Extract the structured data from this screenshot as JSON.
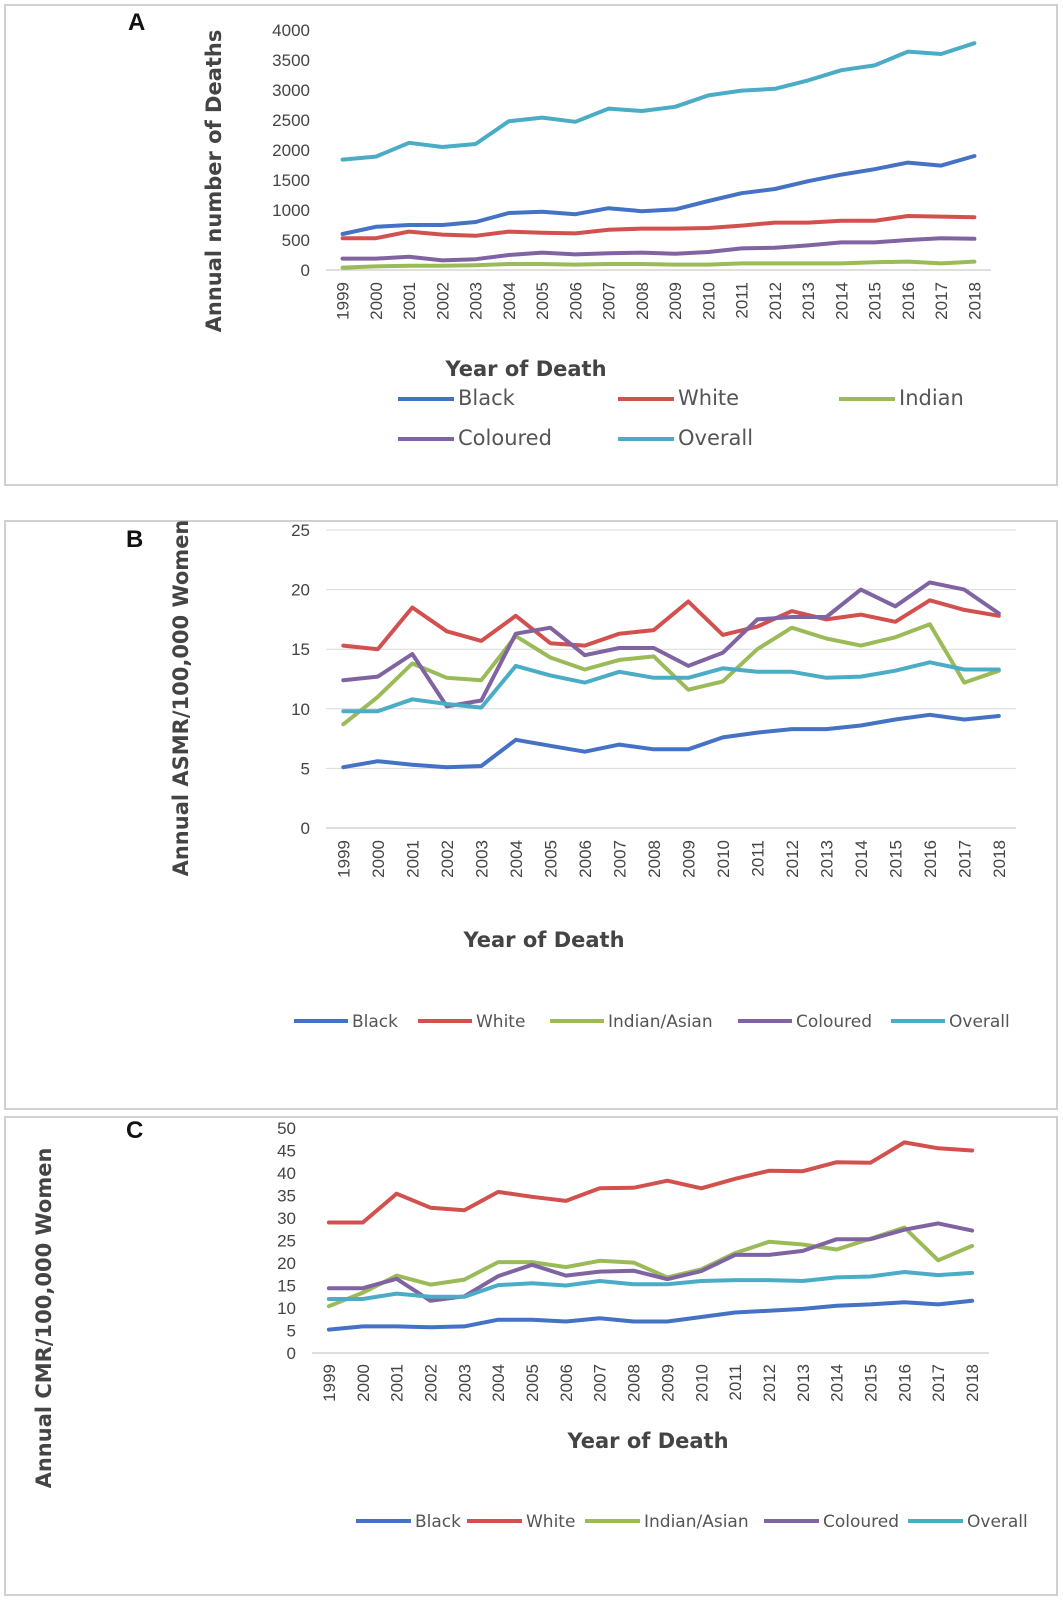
{
  "colors": {
    "Black": "#4472C4",
    "White": "#D2514E",
    "Indian": "#9BBB59",
    "Indian/Asian": "#9BBB59",
    "Coloured": "#8064A2",
    "Overall": "#4BACC6",
    "grid": "#d9d9d9"
  },
  "chart_data": [
    {
      "panel_label": "A",
      "type": "line",
      "title": "",
      "xlabel": "Year of Death",
      "ylabel": "Annual number of Deaths",
      "categories": [
        "1999",
        "2000",
        "2001",
        "2002",
        "2003",
        "2004",
        "2005",
        "2006",
        "2007",
        "2008",
        "2009",
        "2010",
        "2011",
        "2012",
        "2013",
        "2014",
        "2015",
        "2016",
        "2017",
        "2018"
      ],
      "ylim": [
        0,
        4000
      ],
      "yticks": [
        "0",
        "500",
        "1000",
        "1500",
        "2000",
        "2500",
        "3000",
        "3500",
        "4000"
      ],
      "grid": false,
      "series": [
        {
          "name": "Black",
          "values": [
            600,
            720,
            750,
            750,
            800,
            950,
            970,
            930,
            1030,
            980,
            1010,
            1150,
            1280,
            1350,
            1480,
            1590,
            1680,
            1790,
            1740,
            1900
          ]
        },
        {
          "name": "White",
          "values": [
            530,
            530,
            640,
            590,
            570,
            640,
            620,
            610,
            670,
            690,
            690,
            700,
            740,
            790,
            790,
            820,
            820,
            900,
            890,
            880
          ]
        },
        {
          "name": "Indian",
          "values": [
            40,
            60,
            70,
            70,
            80,
            100,
            100,
            90,
            100,
            100,
            90,
            90,
            110,
            110,
            110,
            110,
            130,
            140,
            110,
            140
          ]
        },
        {
          "name": "Coloured",
          "values": [
            190,
            190,
            220,
            160,
            180,
            250,
            290,
            260,
            280,
            290,
            270,
            300,
            360,
            370,
            410,
            460,
            460,
            500,
            530,
            520
          ]
        },
        {
          "name": "Overall",
          "values": [
            1840,
            1890,
            2120,
            2050,
            2100,
            2480,
            2540,
            2470,
            2690,
            2650,
            2720,
            2910,
            2990,
            3020,
            3160,
            3330,
            3410,
            3640,
            3600,
            3780
          ]
        }
      ],
      "legend": [
        "Black",
        "White",
        "Indian",
        "Coloured",
        "Overall"
      ]
    },
    {
      "panel_label": "B",
      "type": "line",
      "title": "",
      "xlabel": "Year of Death",
      "ylabel": "Annual ASMR/100,000 Women",
      "categories": [
        "1999",
        "2000",
        "2001",
        "2002",
        "2003",
        "2004",
        "2005",
        "2006",
        "2007",
        "2008",
        "2009",
        "2010",
        "2011",
        "2012",
        "2013",
        "2014",
        "2015",
        "2016",
        "2017",
        "2018"
      ],
      "ylim": [
        0,
        25
      ],
      "yticks": [
        "0",
        "5",
        "10",
        "15",
        "20",
        "25"
      ],
      "grid": true,
      "series": [
        {
          "name": "Black",
          "values": [
            5.1,
            5.6,
            5.3,
            5.1,
            5.2,
            7.4,
            6.9,
            6.4,
            7.0,
            6.6,
            6.6,
            7.6,
            8.0,
            8.3,
            8.3,
            8.6,
            9.1,
            9.5,
            9.1,
            9.4
          ]
        },
        {
          "name": "White",
          "values": [
            15.3,
            15.0,
            18.5,
            16.5,
            15.7,
            17.8,
            15.5,
            15.3,
            16.3,
            16.6,
            19.0,
            16.2,
            16.9,
            18.2,
            17.5,
            17.9,
            17.3,
            19.1,
            18.3,
            17.8
          ]
        },
        {
          "name": "Indian/Asian",
          "values": [
            8.7,
            11.0,
            13.8,
            12.6,
            12.4,
            16.1,
            14.3,
            13.3,
            14.1,
            14.4,
            11.6,
            12.3,
            15.0,
            16.8,
            15.9,
            15.3,
            16.0,
            17.1,
            12.2,
            13.2
          ]
        },
        {
          "name": "Coloured",
          "values": [
            12.4,
            12.7,
            14.6,
            10.2,
            10.7,
            16.3,
            16.8,
            14.5,
            15.1,
            15.1,
            13.6,
            14.7,
            17.5,
            17.7,
            17.7,
            20.0,
            18.6,
            20.6,
            20.0,
            18.0
          ]
        },
        {
          "name": "Overall",
          "values": [
            9.8,
            9.8,
            10.8,
            10.4,
            10.1,
            13.6,
            12.8,
            12.2,
            13.1,
            12.6,
            12.6,
            13.4,
            13.1,
            13.1,
            12.6,
            12.7,
            13.2,
            13.9,
            13.3,
            13.3
          ]
        }
      ],
      "legend": [
        "Black",
        "White",
        "Indian/Asian",
        "Coloured",
        "Overall"
      ]
    },
    {
      "panel_label": "C",
      "type": "line",
      "title": "",
      "xlabel": "Year of Death",
      "ylabel": "Annual CMR/100,000 Women",
      "categories": [
        "1999",
        "2000",
        "2001",
        "2002",
        "2003",
        "2004",
        "2005",
        "2006",
        "2007",
        "2008",
        "2009",
        "2010",
        "2011",
        "2012",
        "2013",
        "2014",
        "2015",
        "2016",
        "2017",
        "2018"
      ],
      "ylim": [
        0,
        50
      ],
      "yticks": [
        "0",
        "5",
        "10",
        "15",
        "20",
        "25",
        "30",
        "35",
        "40",
        "45",
        "50"
      ],
      "grid": false,
      "series": [
        {
          "name": "Black",
          "values": [
            5.2,
            5.9,
            5.9,
            5.7,
            5.9,
            7.4,
            7.4,
            7.0,
            7.7,
            7.0,
            7.0,
            8.0,
            9.0,
            9.4,
            9.8,
            10.5,
            10.8,
            11.3,
            10.8,
            11.6
          ]
        },
        {
          "name": "White",
          "values": [
            29,
            29,
            35.4,
            32.3,
            31.7,
            35.8,
            34.7,
            33.8,
            36.6,
            36.7,
            38.3,
            36.6,
            38.7,
            40.5,
            40.4,
            42.4,
            42.3,
            46.8,
            45.5,
            45.0
          ]
        },
        {
          "name": "Indian/Asian",
          "values": [
            10.4,
            13.4,
            17.2,
            15.2,
            16.3,
            20.2,
            20.2,
            19.1,
            20.5,
            20.1,
            16.8,
            18.6,
            22.2,
            24.7,
            24.1,
            23.0,
            25.4,
            27.9,
            20.6,
            23.8
          ]
        },
        {
          "name": "Coloured",
          "values": [
            14.4,
            14.4,
            16.5,
            11.6,
            12.6,
            17.1,
            19.6,
            17.2,
            18.1,
            18.3,
            16.4,
            18.2,
            21.8,
            21.8,
            22.7,
            25.3,
            25.3,
            27.4,
            28.8,
            27.2
          ]
        },
        {
          "name": "Overall",
          "values": [
            12.0,
            12.0,
            13.2,
            12.5,
            12.5,
            15.1,
            15.5,
            15.0,
            16.0,
            15.3,
            15.3,
            16.0,
            16.2,
            16.2,
            16.0,
            16.8,
            17.0,
            18.0,
            17.3,
            17.8
          ]
        }
      ],
      "legend": [
        "Black",
        "White",
        "Indian/Asian",
        "Coloured",
        "Overall"
      ]
    }
  ]
}
